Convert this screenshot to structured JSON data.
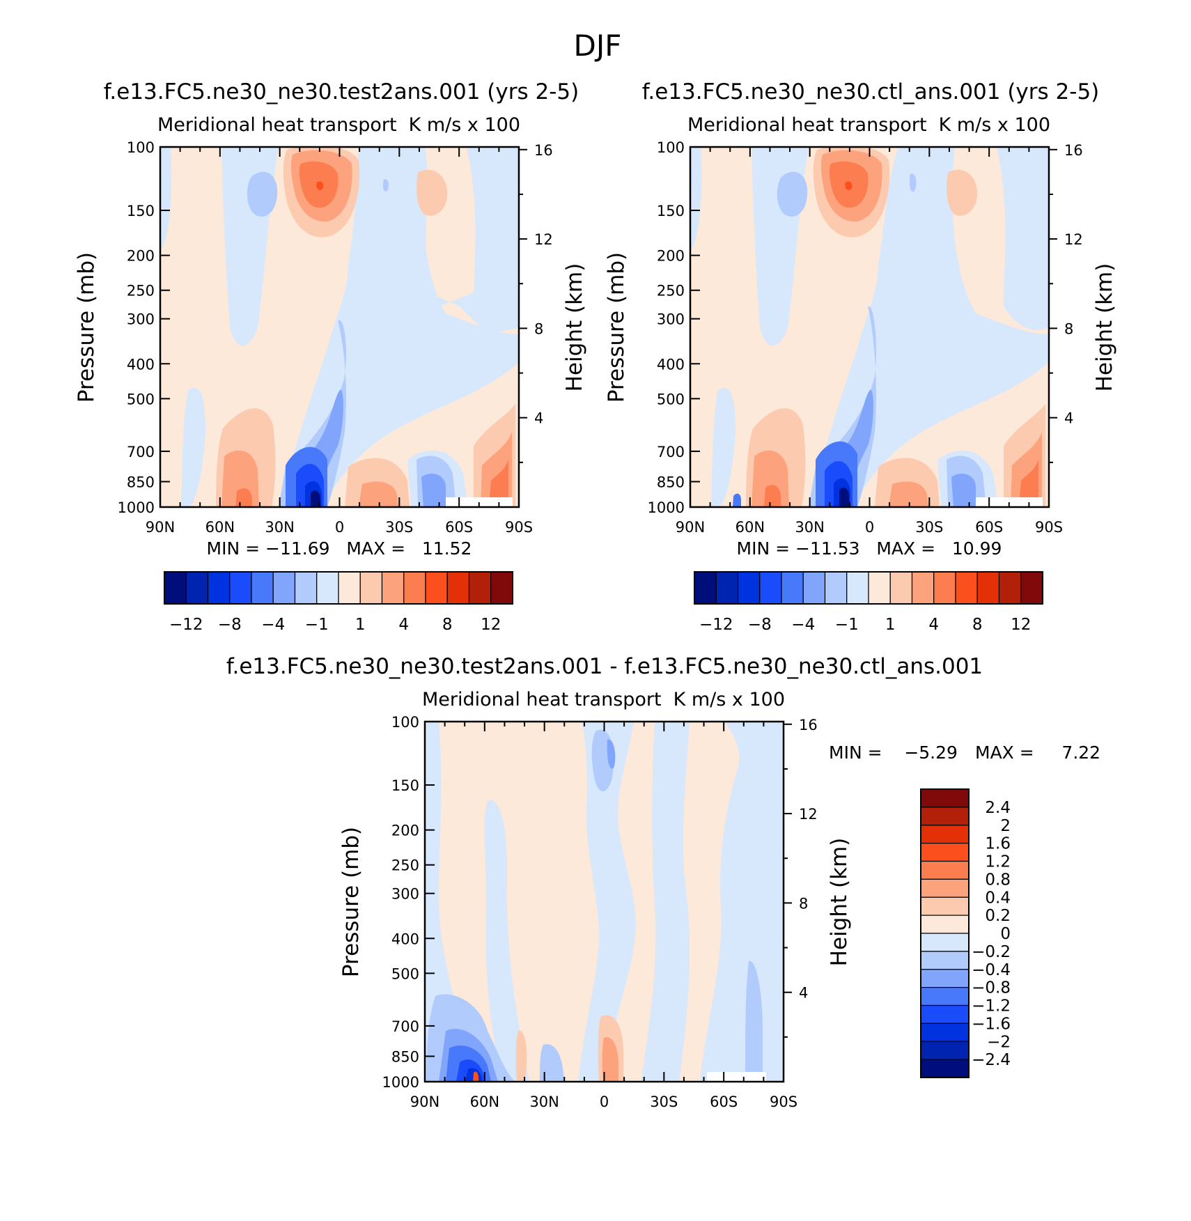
{
  "figure": {
    "title": "DJF"
  },
  "chart_data": [
    {
      "type": "heatmap",
      "name": "panel-test",
      "title": "f.e13.FC5.ne30_ne30.test2ans.001 (yrs 2-5)",
      "subtitle_left": "Meridional heat transport",
      "subtitle_right": "K m/s x 100",
      "ylabel": "Pressure (mb)",
      "ylabel_right": "Height (km)",
      "x_ticks": [
        "90N",
        "60N",
        "30N",
        "0",
        "30S",
        "60S",
        "90S"
      ],
      "x_range": [
        90,
        -90
      ],
      "y_ticks": [
        100,
        150,
        200,
        250,
        300,
        400,
        500,
        700,
        850,
        1000
      ],
      "y_range": [
        100,
        1000
      ],
      "y_scale": "log",
      "height_ticks": [
        16,
        12,
        8,
        4
      ],
      "stats": "MIN = -11.69   MAX =   11.52",
      "colorbar": {
        "orientation": "horizontal",
        "levels": [
          -14,
          -12,
          -10,
          -8,
          -6,
          -4,
          -2,
          -1,
          0,
          1,
          2,
          4,
          6,
          8,
          10,
          12,
          14
        ],
        "tick_labels": [
          "-12",
          "-8",
          "-4",
          "-1",
          "1",
          "4",
          "8",
          "12"
        ],
        "colors": [
          "#000e7c",
          "#0024b0",
          "#0033e0",
          "#1a4cfc",
          "#4779fa",
          "#80a5fb",
          "#b2cbfd",
          "#d7e8fd",
          "#fde9d9",
          "#fccaae",
          "#fca37e",
          "#fc7d4f",
          "#fb4f1e",
          "#e43007",
          "#b22009",
          "#800a0a"
        ]
      }
    },
    {
      "type": "heatmap",
      "name": "panel-ctl",
      "title": "f.e13.FC5.ne30_ne30.ctl_ans.001 (yrs 2-5)",
      "subtitle_left": "Meridional heat transport",
      "subtitle_right": "K m/s x 100",
      "ylabel": "Pressure (mb)",
      "ylabel_right": "Height (km)",
      "x_ticks": [
        "90N",
        "60N",
        "30N",
        "0",
        "30S",
        "60S",
        "90S"
      ],
      "x_range": [
        90,
        -90
      ],
      "y_ticks": [
        100,
        150,
        200,
        250,
        300,
        400,
        500,
        700,
        850,
        1000
      ],
      "y_range": [
        100,
        1000
      ],
      "y_scale": "log",
      "height_ticks": [
        16,
        12,
        8,
        4
      ],
      "stats": "MIN = -11.53   MAX =   10.99",
      "colorbar": {
        "orientation": "horizontal",
        "levels": [
          -14,
          -12,
          -10,
          -8,
          -6,
          -4,
          -2,
          -1,
          0,
          1,
          2,
          4,
          6,
          8,
          10,
          12,
          14
        ],
        "tick_labels": [
          "-12",
          "-8",
          "-4",
          "-1",
          "1",
          "4",
          "8",
          "12"
        ],
        "colors": [
          "#000e7c",
          "#0024b0",
          "#0033e0",
          "#1a4cfc",
          "#4779fa",
          "#80a5fb",
          "#b2cbfd",
          "#d7e8fd",
          "#fde9d9",
          "#fccaae",
          "#fca37e",
          "#fc7d4f",
          "#fb4f1e",
          "#e43007",
          "#b22009",
          "#800a0a"
        ]
      }
    },
    {
      "type": "heatmap",
      "name": "panel-diff",
      "title": "f.e13.FC5.ne30_ne30.test2ans.001 - f.e13.FC5.ne30_ne30.ctl_ans.001",
      "subtitle_left": "Meridional heat transport",
      "subtitle_right": "K m/s x 100",
      "ylabel": "Pressure (mb)",
      "ylabel_right": "Height (km)",
      "x_ticks": [
        "90N",
        "60N",
        "30N",
        "0",
        "30S",
        "60S",
        "90S"
      ],
      "x_range": [
        90,
        -90
      ],
      "y_ticks": [
        100,
        150,
        200,
        250,
        300,
        400,
        500,
        700,
        850,
        1000
      ],
      "y_range": [
        100,
        1000
      ],
      "y_scale": "log",
      "height_ticks": [
        16,
        12,
        8,
        4
      ],
      "stats_min": "MIN =    -5.29",
      "stats_max": "MAX =     7.22",
      "colorbar": {
        "orientation": "vertical",
        "tick_labels": [
          "2.4",
          "2",
          "1.6",
          "1.2",
          "0.8",
          "0.4",
          "0.2",
          "0",
          "-0.2",
          "-0.4",
          "-0.8",
          "-1.2",
          "-1.6",
          "-2",
          "-2.4"
        ],
        "colors": [
          "#800a0a",
          "#b22009",
          "#e43007",
          "#fb4f1e",
          "#fc7d4f",
          "#fca37e",
          "#fccaae",
          "#fde9d9",
          "#d7e8fd",
          "#b2cbfd",
          "#80a5fb",
          "#4779fa",
          "#1a4cfc",
          "#0033e0",
          "#0024b0",
          "#000e7c"
        ]
      }
    }
  ]
}
